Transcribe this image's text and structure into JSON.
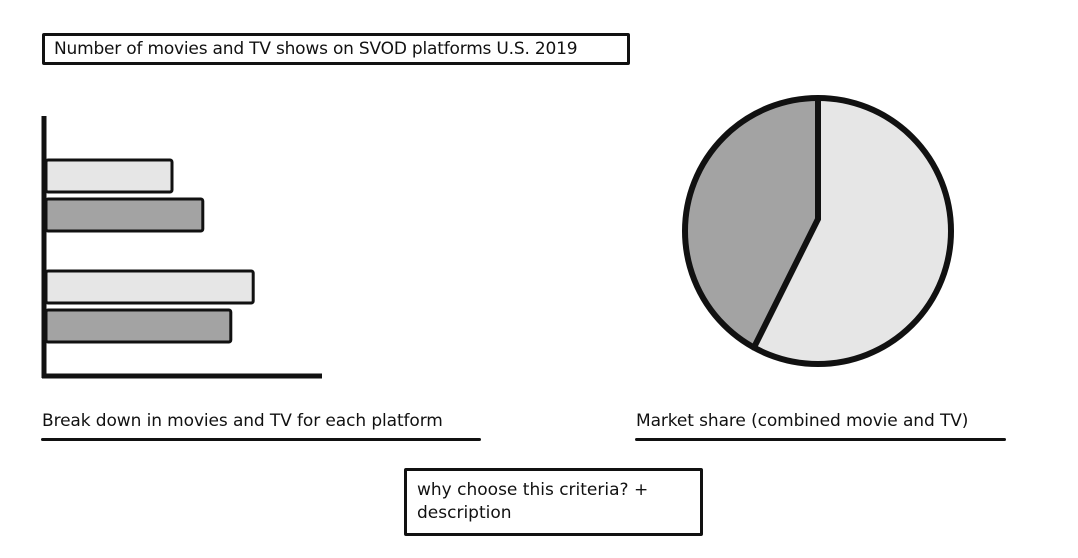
{
  "header": {
    "title": "Number of movies and TV shows on SVOD platforms U.S. 2019"
  },
  "colors": {
    "ink": "#111111",
    "light_bar": "#e6e6e6",
    "dark_bar": "#a3a3a3",
    "pie_light": "#e6e6e6",
    "pie_dark": "#a3a3a3"
  },
  "chart_data": [
    {
      "type": "bar",
      "orientation": "horizontal",
      "categories": [
        "",
        ""
      ],
      "series": [
        {
          "values": [
            45,
            74
          ]
        },
        {
          "values": [
            56,
            66
          ]
        }
      ],
      "xlim": [
        0,
        100
      ],
      "grid": false
    },
    {
      "type": "pie",
      "values": [
        58,
        42
      ]
    }
  ],
  "captions": {
    "left": "Break down in movies and TV for each platform",
    "right": "Market share (combined movie and TV)"
  },
  "note": {
    "text": "why choose this criteria? + description"
  }
}
